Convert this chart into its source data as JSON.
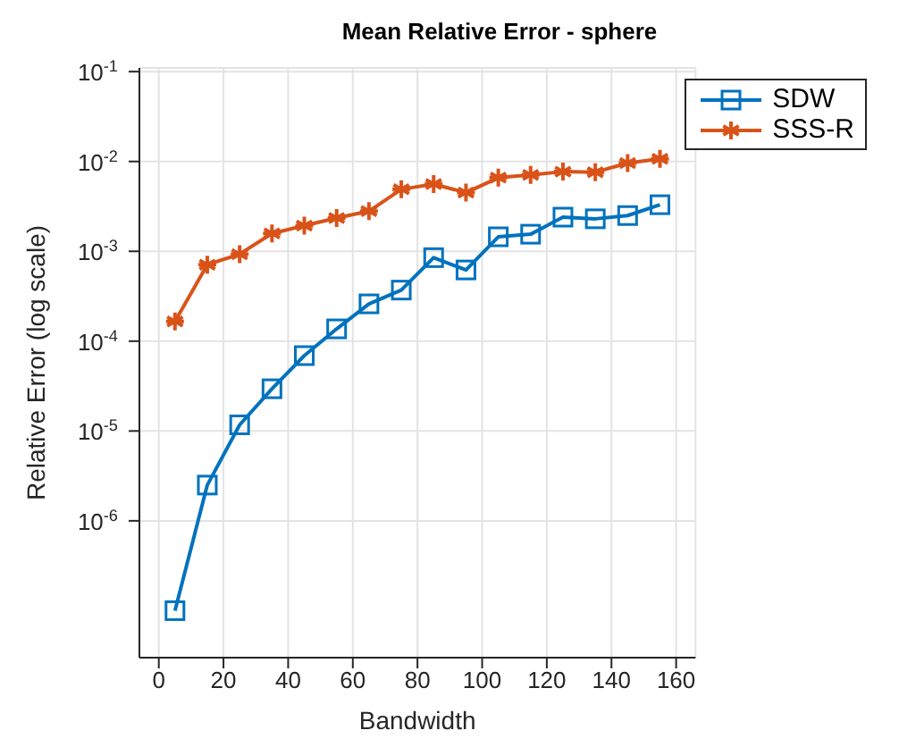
{
  "chart_data": {
    "type": "line",
    "title": "Mean Relative Error - sphere",
    "xlabel": "Bandwidth",
    "ylabel": "Relative Error (log scale)",
    "x": [
      5,
      15,
      25,
      35,
      45,
      55,
      65,
      75,
      85,
      95,
      105,
      115,
      125,
      135,
      145,
      155
    ],
    "series": [
      {
        "name": "SDW",
        "color": "#0072bd",
        "marker": "square",
        "values": [
          1e-07,
          2.5e-06,
          1.17e-05,
          2.95e-05,
          6.9e-05,
          0.000137,
          0.00026,
          0.00037,
          0.00085,
          0.00062,
          0.00145,
          0.00155,
          0.0024,
          0.0023,
          0.0025,
          0.0033
        ]
      },
      {
        "name": "SSS-R",
        "color": "#d95319",
        "marker": "cross",
        "values": [
          0.000166,
          0.00071,
          0.00093,
          0.00158,
          0.00193,
          0.00235,
          0.0028,
          0.0049,
          0.0056,
          0.0045,
          0.0066,
          0.0071,
          0.0077,
          0.0076,
          0.0096,
          0.0107
        ]
      }
    ],
    "xlim": [
      -6,
      166
    ],
    "xticks": [
      0,
      20,
      40,
      60,
      80,
      100,
      120,
      140,
      160
    ],
    "ylim": [
      3e-08,
      0.11
    ],
    "yticks": [
      {
        "value": 1e-06,
        "label": "10$^{-6}$"
      },
      {
        "value": 1e-05,
        "label": "10$^{-5}$"
      },
      {
        "value": 0.0001,
        "label": "10$^{-4}$"
      },
      {
        "value": 0.001,
        "label": "10$^{-3}$"
      },
      {
        "value": 0.01,
        "label": "10$^{-2}$"
      },
      {
        "value": 0.1,
        "label": "10$^{-1}$"
      }
    ],
    "log": "y",
    "grid": true,
    "legend": "top right",
    "line_style": "solid"
  }
}
